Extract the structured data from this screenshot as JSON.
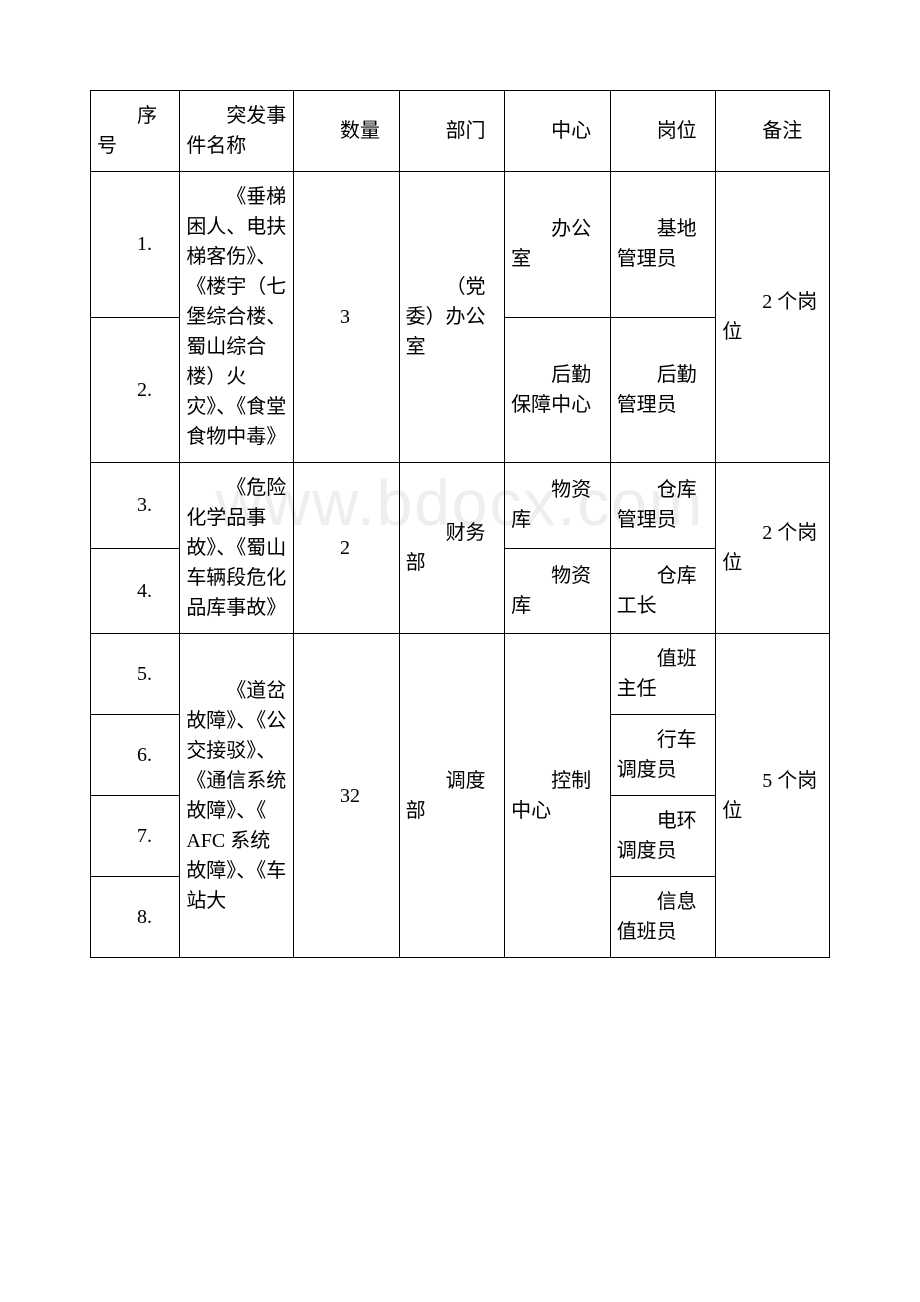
{
  "watermark": "www.bdocx.com",
  "headers": {
    "seq": "序号",
    "event": "突发事件名称",
    "count": "数量",
    "dept": "部门",
    "center": "中心",
    "post": "岗位",
    "note": "备注"
  },
  "group1": {
    "seq1": "1.",
    "seq2": "2.",
    "event": "《垂梯困人、电扶梯客伤》、《楼宇（七堡综合楼、蜀山综合楼）火灾》、《食堂食物中毒》",
    "count": "3",
    "dept": "（党委）办公室",
    "center1": "办公室",
    "post1": "基地管理员",
    "center2": "后勤保障中心",
    "post2": "后勤管理员",
    "note": "2 个岗位"
  },
  "group2": {
    "seq1": "3.",
    "seq2": "4.",
    "event": "《危险化学品事故》、《蜀山车辆段危化品库事故》",
    "count": "2",
    "dept": "财务部",
    "center1": "物资库",
    "post1": "仓库管理员",
    "center2": "物资库",
    "post2": "仓库工长",
    "note": "2 个岗位"
  },
  "group3": {
    "seq1": "5.",
    "seq2": "6.",
    "seq3": "7.",
    "seq4": "8.",
    "event": "《道岔故障》、《公交接驳》、《通信系统故障》、《 AFC 系统故障》、《车站大",
    "count": "32",
    "dept": "调度部",
    "center": "控制中心",
    "post1": "值班主任",
    "post2": "行车调度员",
    "post3": "电环调度员",
    "post4": "信息值班员",
    "note": "5 个岗位"
  },
  "style": {
    "border_color": "#000000",
    "background": "#ffffff",
    "font_size": 20,
    "watermark_color": "#eeeeee"
  }
}
